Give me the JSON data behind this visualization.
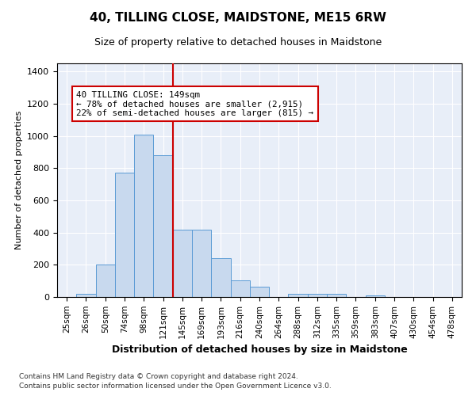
{
  "title": "40, TILLING CLOSE, MAIDSTONE, ME15 6RW",
  "subtitle": "Size of property relative to detached houses in Maidstone",
  "xlabel": "Distribution of detached houses by size in Maidstone",
  "ylabel": "Number of detached properties",
  "footnote1": "Contains HM Land Registry data © Crown copyright and database right 2024.",
  "footnote2": "Contains public sector information licensed under the Open Government Licence v3.0.",
  "bar_labels": [
    "25sqm",
    "26sqm",
    "50sqm",
    "74sqm",
    "98sqm",
    "121sqm",
    "145sqm",
    "169sqm",
    "193sqm",
    "216sqm",
    "240sqm",
    "264sqm",
    "288sqm",
    "312sqm",
    "335sqm",
    "359sqm",
    "383sqm",
    "407sqm",
    "430sqm",
    "454sqm",
    "478sqm"
  ],
  "bar_values": [
    0,
    20,
    200,
    770,
    1010,
    880,
    420,
    420,
    240,
    105,
    65,
    0,
    20,
    20,
    20,
    0,
    10,
    0,
    0,
    0,
    0
  ],
  "bar_color": "#c8d9ee",
  "bar_edge_color": "#5b9bd5",
  "vline_x": 6.0,
  "vline_color": "#cc0000",
  "ylim": [
    0,
    1450
  ],
  "yticks": [
    0,
    200,
    400,
    600,
    800,
    1000,
    1200,
    1400
  ],
  "annotation_text": "40 TILLING CLOSE: 149sqm\n← 78% of detached houses are smaller (2,915)\n22% of semi-detached houses are larger (815) →",
  "background_color": "#e8eef8",
  "grid_color": "#ffffff",
  "figsize": [
    6.0,
    5.0
  ],
  "dpi": 100
}
